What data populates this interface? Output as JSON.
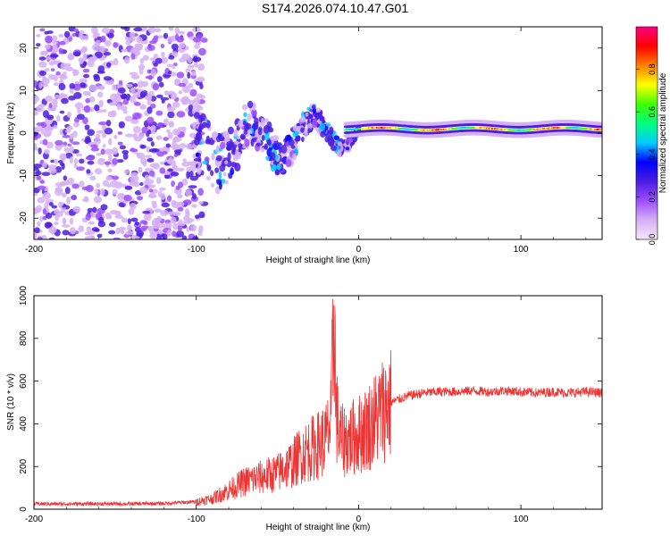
{
  "title": "S174.2026.074.10.47.G01",
  "chart_data": [
    {
      "type": "heatmap",
      "xlabel": "Height of straight line (km)",
      "ylabel": "Frequency (Hz)",
      "xlim": [
        -200,
        150
      ],
      "ylim": [
        -25,
        25
      ],
      "xticks": [
        -200,
        -100,
        0,
        100
      ],
      "xtick_labels": [
        "-200",
        "-100",
        "0",
        "100"
      ],
      "yticks": [
        20,
        10,
        0,
        -10,
        -20
      ],
      "ytick_labels": [
        "20",
        "10",
        "0",
        "-10",
        "-20"
      ],
      "colorbar": {
        "label": "Normalized spectral amplitude",
        "range": [
          0,
          1
        ],
        "ticks": [
          0.0,
          0.2,
          0.4,
          0.6,
          0.8
        ],
        "tick_labels": [
          "0.0",
          "0.2",
          "0.4",
          "0.6",
          "0.8"
        ],
        "colormap": [
          "#f5e6fb",
          "#d6b0f5",
          "#9b4dff",
          "#4b1de0",
          "#0000ff",
          "#00ccff",
          "#00ff80",
          "#40ff00",
          "#ffff00",
          "#ff8000",
          "#ff0000",
          "#ff0080"
        ]
      },
      "regions": [
        {
          "name": "scatter noise",
          "x_range": [
            -200,
            -95
          ],
          "freq_range": [
            -25,
            25
          ],
          "amplitude": 0.15
        },
        {
          "name": "converging band",
          "x_range": [
            -100,
            0
          ],
          "freq_range": [
            -20,
            10
          ],
          "amplitude": 0.3
        },
        {
          "name": "stable tone",
          "x_range": [
            0,
            150
          ],
          "freq": 1,
          "amplitude": 0.9
        }
      ]
    },
    {
      "type": "line",
      "xlabel": "Height of straight line (km)",
      "ylabel": "SNR (10 * v/v)",
      "xlim": [
        -200,
        150
      ],
      "ylim": [
        0,
        1000
      ],
      "xticks": [
        -200,
        -100,
        0,
        100
      ],
      "xtick_labels": [
        "-200",
        "-100",
        "0",
        "100"
      ],
      "yticks": [
        0,
        200,
        400,
        600,
        800,
        1000
      ],
      "ytick_labels": [
        "0",
        "200",
        "400",
        "600",
        "800",
        "1000"
      ],
      "series": [
        {
          "name": "SNR",
          "color": "#ee3333",
          "x": [
            -200,
            -180,
            -160,
            -140,
            -120,
            -100,
            -90,
            -80,
            -70,
            -60,
            -50,
            -40,
            -35,
            -30,
            -25,
            -20,
            -17,
            -15,
            -14,
            -12,
            -10,
            -5,
            0,
            5,
            10,
            15,
            20,
            30,
            40,
            50,
            60,
            70,
            80,
            90,
            100,
            110,
            120,
            130,
            140,
            150
          ],
          "values": [
            25,
            25,
            25,
            25,
            27,
            35,
            50,
            90,
            130,
            150,
            170,
            220,
            260,
            280,
            300,
            330,
            400,
            1000,
            470,
            340,
            320,
            330,
            350,
            380,
            420,
            470,
            500,
            530,
            545,
            550,
            550,
            555,
            550,
            555,
            550,
            545,
            550,
            545,
            550,
            545
          ]
        }
      ]
    }
  ]
}
